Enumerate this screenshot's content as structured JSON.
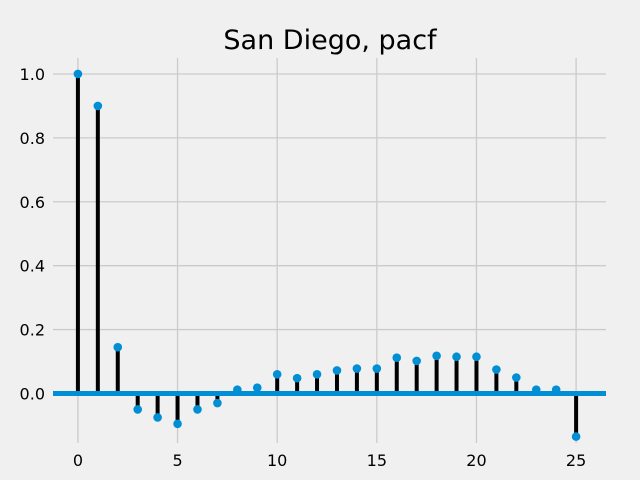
{
  "chart_data": {
    "type": "stem",
    "title": "San Diego, pacf",
    "xlabel": "",
    "ylabel": "",
    "xlim": [
      -1.25,
      26.5
    ],
    "ylim": [
      -0.155,
      1.05
    ],
    "xticks": [
      0,
      5,
      10,
      15,
      20,
      25
    ],
    "yticks": [
      0.0,
      0.2,
      0.4,
      0.6,
      0.8,
      1.0
    ],
    "ytick_labels": [
      "0.0",
      "0.2",
      "0.4",
      "0.6",
      "0.8",
      "1.0"
    ],
    "grid": true,
    "lags": [
      0,
      1,
      2,
      3,
      4,
      5,
      6,
      7,
      8,
      9,
      10,
      11,
      12,
      13,
      14,
      15,
      16,
      17,
      18,
      19,
      20,
      21,
      22,
      23,
      24,
      25
    ],
    "values": [
      1.0,
      0.9,
      0.145,
      -0.05,
      -0.075,
      -0.095,
      -0.05,
      -0.03,
      0.012,
      0.018,
      0.06,
      0.048,
      0.06,
      0.072,
      0.078,
      0.078,
      0.112,
      0.102,
      0.118,
      0.115,
      0.115,
      0.075,
      0.05,
      0.012,
      0.012,
      -0.135
    ],
    "colors": {
      "background": "#f0f0f0",
      "stem": "#000000",
      "marker": "#008fd5",
      "zero_line": "#008fd5",
      "grid": "#cbcbcb"
    }
  }
}
